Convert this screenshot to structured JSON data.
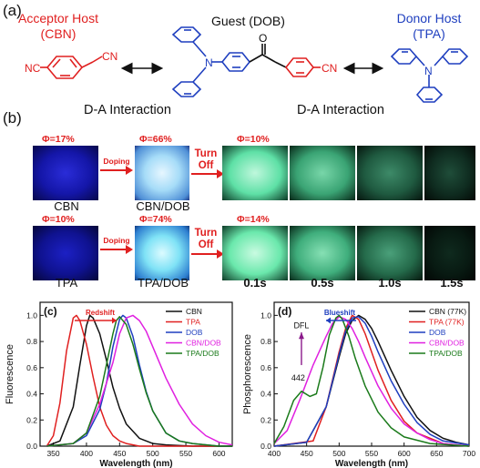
{
  "panel_a": {
    "label": "(a)",
    "acceptor_title": "Acceptor Host",
    "acceptor_abbr": "(CBN)",
    "guest_title": "Guest (DOB)",
    "donor_title": "Donor Host",
    "donor_abbr": "(TPA)",
    "da_left": "D-A Interaction",
    "da_right": "D-A Interaction",
    "atom_nc": "NC",
    "atom_cn": "CN",
    "atom_n": "N",
    "atom_o": "O",
    "colors": {
      "acceptor": "#e02020",
      "donor": "#1f3fbf"
    }
  },
  "panel_b": {
    "label": "(b)",
    "row1": {
      "phi_host": "Φ=17%",
      "phi_doped": "Φ=66%",
      "phi_off": "Φ=10%",
      "host_label": "CBN",
      "doped_label": "CBN/DOB",
      "arrow_label": "Doping",
      "turnoff_label_1": "Turn",
      "turnoff_label_2": "Off"
    },
    "row2": {
      "phi_host": "Φ=10%",
      "phi_doped": "Φ=74%",
      "phi_off": "Φ=14%",
      "host_label": "TPA",
      "doped_label": "TPA/DOB",
      "arrow_label": "Doping",
      "turnoff_label_1": "Turn",
      "turnoff_label_2": "Off"
    },
    "times": [
      "0.1s",
      "0.5s",
      "1.0s",
      "1.5s"
    ]
  },
  "chart_data": [
    {
      "type": "line",
      "panel_label": "(c)",
      "xlabel": "Wavelength (nm)",
      "ylabel": "Fluorescence",
      "xlim": [
        330,
        620
      ],
      "ylim": [
        0,
        1.1
      ],
      "xticks": [
        350,
        400,
        450,
        500,
        550,
        600
      ],
      "yticks": [
        0.0,
        0.2,
        0.4,
        0.6,
        0.8,
        1.0
      ],
      "annotation": "Redshift",
      "legend_position": "top-right",
      "series": [
        {
          "name": "CBN",
          "color": "#111111",
          "x": [
            340,
            360,
            380,
            390,
            400,
            405,
            410,
            420,
            430,
            440,
            450,
            460,
            480,
            500,
            520,
            560,
            600,
            620
          ],
          "y": [
            0,
            0.04,
            0.3,
            0.62,
            0.92,
            1.0,
            0.98,
            0.86,
            0.66,
            0.45,
            0.29,
            0.17,
            0.06,
            0.02,
            0.01,
            0,
            0,
            0
          ]
        },
        {
          "name": "TPA",
          "color": "#e02020",
          "x": [
            340,
            350,
            360,
            370,
            380,
            385,
            390,
            400,
            410,
            420,
            430,
            440,
            450,
            460,
            480,
            500,
            620
          ],
          "y": [
            0,
            0.08,
            0.33,
            0.73,
            0.98,
            1.0,
            0.96,
            0.78,
            0.53,
            0.3,
            0.16,
            0.08,
            0.04,
            0.02,
            0,
            0,
            0
          ]
        },
        {
          "name": "DOB",
          "color": "#1f3fbf",
          "x": [
            340,
            380,
            400,
            420,
            430,
            440,
            450,
            455,
            460,
            470,
            480,
            490,
            500,
            520,
            540,
            560,
            600,
            620
          ],
          "y": [
            0,
            0.02,
            0.08,
            0.28,
            0.48,
            0.76,
            0.97,
            1.0,
            0.98,
            0.84,
            0.62,
            0.42,
            0.27,
            0.1,
            0.04,
            0.02,
            0,
            0
          ]
        },
        {
          "name": "CBN/DOB",
          "color": "#e020e0",
          "x": [
            340,
            380,
            400,
            420,
            440,
            450,
            460,
            470,
            480,
            490,
            500,
            520,
            540,
            560,
            580,
            600,
            620
          ],
          "y": [
            0,
            0.02,
            0.1,
            0.32,
            0.64,
            0.86,
            0.98,
            1.0,
            0.96,
            0.88,
            0.76,
            0.52,
            0.32,
            0.17,
            0.08,
            0.03,
            0.01
          ]
        },
        {
          "name": "TPA/DOB",
          "color": "#1a7a1a",
          "x": [
            340,
            380,
            400,
            420,
            430,
            440,
            445,
            450,
            460,
            470,
            480,
            490,
            500,
            520,
            540,
            560,
            600,
            620
          ],
          "y": [
            0,
            0.02,
            0.1,
            0.38,
            0.62,
            0.86,
            0.96,
            0.99,
            0.93,
            0.78,
            0.59,
            0.41,
            0.27,
            0.1,
            0.04,
            0.02,
            0,
            0
          ]
        }
      ]
    },
    {
      "type": "line",
      "panel_label": "(d)",
      "xlabel": "Wavelength (nm)",
      "ylabel": "Phosphorescence",
      "xlim": [
        400,
        700
      ],
      "ylim": [
        0,
        1.1
      ],
      "xticks": [
        400,
        450,
        500,
        550,
        600,
        650,
        700
      ],
      "yticks": [
        0.0,
        0.2,
        0.4,
        0.6,
        0.8,
        1.0
      ],
      "annotation": "Blueshift",
      "annotation_dfl": "DFL",
      "annotation_peak": "442",
      "legend_position": "top-right",
      "series": [
        {
          "name": "CBN (77K)",
          "color": "#111111",
          "x": [
            400,
            450,
            480,
            500,
            510,
            520,
            530,
            540,
            550,
            560,
            580,
            600,
            620,
            640,
            660,
            680,
            700
          ],
          "y": [
            0,
            0.03,
            0.3,
            0.68,
            0.86,
            0.96,
            1.0,
            0.97,
            0.9,
            0.8,
            0.58,
            0.38,
            0.22,
            0.12,
            0.06,
            0.03,
            0.01
          ]
        },
        {
          "name": "TPA (77K)",
          "color": "#e02020",
          "x": [
            400,
            460,
            480,
            500,
            510,
            520,
            530,
            540,
            550,
            560,
            580,
            600,
            620,
            660,
            700
          ],
          "y": [
            0,
            0.04,
            0.3,
            0.72,
            0.9,
            1.0,
            0.97,
            0.86,
            0.72,
            0.58,
            0.35,
            0.19,
            0.1,
            0.02,
            0
          ]
        },
        {
          "name": "DOB",
          "color": "#1f3fbf",
          "x": [
            400,
            450,
            480,
            500,
            510,
            520,
            530,
            540,
            550,
            560,
            580,
            600,
            620,
            640,
            660,
            700
          ],
          "y": [
            0,
            0.03,
            0.3,
            0.7,
            0.88,
            0.98,
            0.99,
            0.94,
            0.84,
            0.72,
            0.5,
            0.32,
            0.18,
            0.09,
            0.04,
            0.01
          ]
        },
        {
          "name": "CBN/DOB",
          "color": "#e020e0",
          "x": [
            400,
            420,
            440,
            460,
            480,
            490,
            500,
            510,
            520,
            530,
            540,
            560,
            580,
            600,
            620,
            640,
            660,
            700
          ],
          "y": [
            0.02,
            0.12,
            0.36,
            0.62,
            0.84,
            0.94,
            0.99,
            0.97,
            0.9,
            0.8,
            0.68,
            0.46,
            0.29,
            0.17,
            0.1,
            0.05,
            0.02,
            0
          ]
        },
        {
          "name": "TPA/DOB",
          "color": "#1a7a1a",
          "x": [
            400,
            415,
            430,
            442,
            455,
            465,
            475,
            485,
            495,
            500,
            505,
            515,
            525,
            540,
            560,
            580,
            600,
            640,
            700
          ],
          "y": [
            0.02,
            0.15,
            0.35,
            0.42,
            0.38,
            0.4,
            0.6,
            0.85,
            0.98,
            1.0,
            0.97,
            0.84,
            0.67,
            0.46,
            0.26,
            0.14,
            0.07,
            0.02,
            0
          ]
        }
      ]
    }
  ]
}
